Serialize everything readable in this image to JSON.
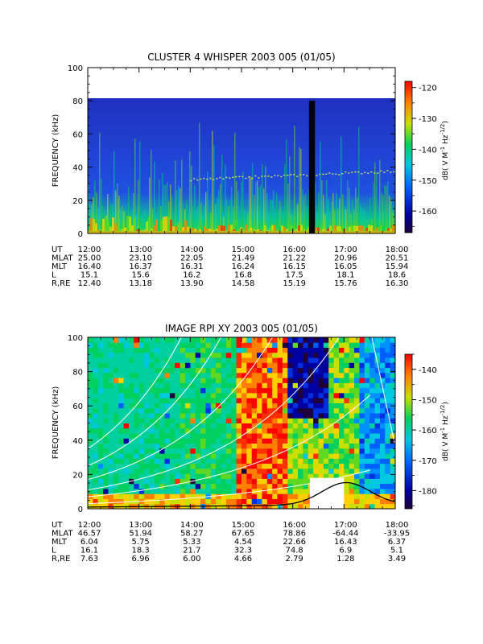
{
  "chart_data": [
    {
      "type": "heatmap",
      "title": "CLUSTER 4 WHISPER 2003 005 (01/05)",
      "ylabel": "FREQUENCY (kHz)",
      "ylim": [
        0,
        100
      ],
      "yticks": [
        0,
        20,
        40,
        60,
        80,
        100
      ],
      "xlim": [
        "12:00",
        "18:00"
      ],
      "xticks": [
        "12:00",
        "13:00",
        "14:00",
        "15:00",
        "16:00",
        "17:00",
        "18:00"
      ],
      "colorbar": {
        "label": "dB( V M^-1 Hz^-1/2)",
        "label_main": "dB( V M",
        "label_exp1": "-1",
        "label_mid": " Hz",
        "label_exp2": "-1/2",
        "label_end": ")",
        "range": [
          -167,
          -118
        ],
        "ticks": [
          -120,
          -130,
          -140,
          -150,
          -160
        ]
      },
      "data_upper_limit_khz": 80,
      "data_gap_ut": [
        "16:19",
        "16:26"
      ],
      "emission_line_khz": {
        "start": 30,
        "end": 38
      },
      "ephemeris": {
        "rows": [
          {
            "label": "UT",
            "values": [
              "12:00",
              "13:00",
              "14:00",
              "15:00",
              "16:00",
              "17:00",
              "18:00"
            ]
          },
          {
            "label": "MLAT",
            "values": [
              "25.00",
              "23.10",
              "22.05",
              "21.49",
              "21.22",
              "20.96",
              "20.51"
            ]
          },
          {
            "label": "MLT",
            "values": [
              "16.40",
              "16.37",
              "16.31",
              "16.24",
              "16.15",
              "16.05",
              "15.94"
            ]
          },
          {
            "label": "L",
            "values": [
              "15.1",
              "15.6",
              "16.2",
              "16.8",
              "17.5",
              "18.1",
              "18.6"
            ]
          },
          {
            "label": "R,RE",
            "values": [
              "12.40",
              "13.18",
              "13.90",
              "14.58",
              "15.19",
              "15.76",
              "16.30"
            ]
          }
        ]
      }
    },
    {
      "type": "heatmap",
      "title": "IMAGE RPI XY 2003 005 (01/05)",
      "ylabel": "FREQUENCY (kHz)",
      "ylim": [
        0,
        100
      ],
      "yticks": [
        0,
        20,
        40,
        60,
        80,
        100
      ],
      "xlim": [
        "12:00",
        "18:00"
      ],
      "xticks": [
        "12:00",
        "13:00",
        "14:00",
        "15:00",
        "16:00",
        "17:00",
        "18:00"
      ],
      "colorbar": {
        "label": "dB( V M^-1 Hz^-1/2)",
        "label_main": "dB( V M",
        "label_exp1": "-1",
        "label_mid": " Hz",
        "label_exp2": "-1/2",
        "label_end": ")",
        "range": [
          -186,
          -135
        ],
        "ticks": [
          -140,
          -150,
          -160,
          -170,
          -180
        ]
      },
      "ephemeris": {
        "rows": [
          {
            "label": "UT",
            "values": [
              "12:00",
              "13:00",
              "14:00",
              "15:00",
              "16:00",
              "17:00",
              "18:00"
            ]
          },
          {
            "label": "MLAT",
            "values": [
              "46.57",
              "51.94",
              "58.27",
              "67.65",
              "78.86",
              "-64.44",
              "-33.95"
            ]
          },
          {
            "label": "MLT",
            "values": [
              "6.04",
              "5.75",
              "5.33",
              "4.54",
              "22.66",
              "16.43",
              "6.37"
            ]
          },
          {
            "label": "L",
            "values": [
              "16.1",
              "18.3",
              "21.7",
              "32.3",
              "74.8",
              "6.9",
              "5.1"
            ]
          },
          {
            "label": "R,RE",
            "values": [
              "7.63",
              "6.96",
              "6.00",
              "4.66",
              "2.79",
              "1.28",
              "3.49"
            ]
          }
        ]
      }
    }
  ]
}
